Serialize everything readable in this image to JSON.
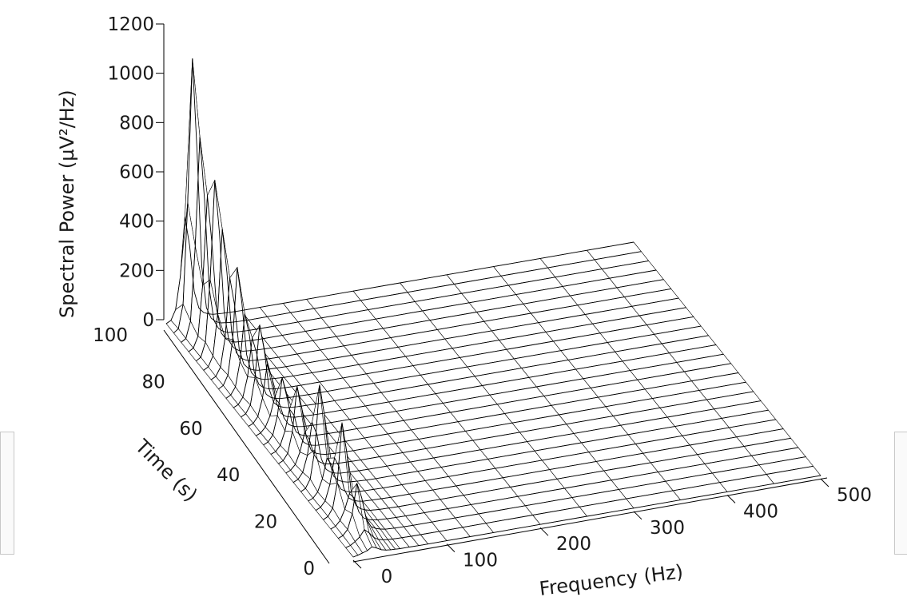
{
  "chart_data": {
    "type": "surface3d",
    "title": "",
    "xlabel": "Frequency (Hz)",
    "ylabel": "Time (s)",
    "zlabel": "Spectral Power (µV²/Hz)",
    "x_ticks": [
      "0",
      "100",
      "200",
      "300",
      "400",
      "500"
    ],
    "y_ticks": [
      "0",
      "20",
      "40",
      "60",
      "80",
      "100"
    ],
    "z_ticks": [
      "0",
      "200",
      "400",
      "600",
      "800",
      "1000",
      "1200"
    ],
    "xlim": [
      0,
      500
    ],
    "ylim": [
      0,
      100
    ],
    "zlim": [
      0,
      1200
    ],
    "grid": false,
    "legend": "none",
    "surface": {
      "frequency_hz": [
        0,
        5,
        10,
        15,
        20,
        25,
        30,
        35,
        40,
        45,
        50,
        60,
        70,
        80,
        100,
        125,
        150,
        200,
        250,
        300,
        350,
        400,
        450,
        500
      ],
      "time_s": [
        0,
        4,
        8,
        12,
        16,
        20,
        24,
        28,
        32,
        36,
        40,
        44,
        48,
        52,
        56,
        60,
        64,
        68,
        72,
        76,
        80,
        84,
        88,
        92,
        96,
        100
      ],
      "power": [
        [
          0,
          4,
          10,
          16,
          28,
          20,
          10,
          5,
          3,
          2,
          1,
          1,
          0,
          0,
          0,
          0,
          0,
          0,
          0,
          0,
          0,
          0,
          0,
          0
        ],
        [
          0,
          6,
          18,
          34,
          60,
          44,
          22,
          10,
          6,
          3,
          2,
          1,
          0,
          0,
          0,
          0,
          0,
          0,
          0,
          0,
          0,
          0,
          0,
          0
        ],
        [
          0,
          8,
          30,
          90,
          210,
          150,
          60,
          25,
          14,
          8,
          4,
          2,
          1,
          0,
          0,
          0,
          0,
          0,
          0,
          0,
          0,
          0,
          0,
          0
        ],
        [
          0,
          8,
          28,
          70,
          130,
          110,
          50,
          22,
          12,
          7,
          4,
          2,
          1,
          0,
          0,
          0,
          0,
          0,
          0,
          0,
          0,
          0,
          0,
          0
        ],
        [
          0,
          10,
          40,
          140,
          380,
          260,
          90,
          35,
          18,
          10,
          5,
          2,
          1,
          0,
          0,
          0,
          0,
          0,
          0,
          0,
          0,
          0,
          0,
          0
        ],
        [
          0,
          9,
          32,
          95,
          200,
          160,
          70,
          28,
          14,
          8,
          4,
          2,
          1,
          0,
          0,
          0,
          0,
          0,
          0,
          0,
          0,
          0,
          0,
          0
        ],
        [
          0,
          8,
          30,
          80,
          160,
          130,
          60,
          25,
          13,
          7,
          4,
          2,
          1,
          0,
          0,
          0,
          0,
          0,
          0,
          0,
          0,
          0,
          0,
          0
        ],
        [
          0,
          10,
          45,
          160,
          420,
          300,
          110,
          40,
          20,
          11,
          6,
          3,
          1,
          0,
          0,
          0,
          0,
          0,
          0,
          0,
          0,
          0,
          0,
          0
        ],
        [
          0,
          9,
          34,
          100,
          230,
          180,
          75,
          30,
          15,
          8,
          4,
          2,
          1,
          0,
          0,
          0,
          0,
          0,
          0,
          0,
          0,
          0,
          0,
          0
        ],
        [
          0,
          8,
          28,
          75,
          150,
          120,
          55,
          24,
          12,
          7,
          4,
          2,
          1,
          0,
          0,
          0,
          0,
          0,
          0,
          0,
          0,
          0,
          0,
          0
        ],
        [
          0,
          9,
          36,
          120,
          300,
          210,
          85,
          32,
          16,
          9,
          5,
          2,
          1,
          0,
          0,
          0,
          0,
          0,
          0,
          0,
          0,
          0,
          0,
          0
        ],
        [
          0,
          8,
          30,
          85,
          170,
          140,
          62,
          26,
          13,
          7,
          4,
          2,
          1,
          0,
          0,
          0,
          0,
          0,
          0,
          0,
          0,
          0,
          0,
          0
        ],
        [
          0,
          9,
          34,
          110,
          260,
          190,
          78,
          30,
          15,
          8,
          4,
          2,
          1,
          0,
          0,
          0,
          0,
          0,
          0,
          0,
          0,
          0,
          0,
          0
        ],
        [
          0,
          8,
          28,
          70,
          140,
          115,
          52,
          22,
          12,
          7,
          4,
          2,
          1,
          0,
          0,
          0,
          0,
          0,
          0,
          0,
          0,
          0,
          0,
          0
        ],
        [
          0,
          9,
          34,
          105,
          240,
          180,
          74,
          29,
          14,
          8,
          4,
          2,
          1,
          0,
          0,
          0,
          0,
          0,
          0,
          0,
          0,
          0,
          0,
          0
        ],
        [
          0,
          10,
          42,
          150,
          360,
          250,
          95,
          36,
          18,
          10,
          5,
          2,
          1,
          0,
          0,
          0,
          0,
          0,
          0,
          0,
          0,
          0,
          0,
          0
        ],
        [
          0,
          9,
          36,
          115,
          270,
          200,
          80,
          31,
          15,
          8,
          4,
          2,
          1,
          0,
          0,
          0,
          0,
          0,
          0,
          0,
          0,
          0,
          0,
          0
        ],
        [
          0,
          10,
          40,
          140,
          330,
          240,
          90,
          34,
          17,
          9,
          5,
          2,
          1,
          0,
          0,
          0,
          0,
          0,
          0,
          0,
          0,
          0,
          0,
          0
        ],
        [
          0,
          11,
          50,
          190,
          480,
          330,
          120,
          44,
          21,
          11,
          6,
          3,
          1,
          0,
          0,
          0,
          0,
          0,
          0,
          0,
          0,
          0,
          0,
          0
        ],
        [
          0,
          10,
          44,
          160,
          400,
          290,
          105,
          40,
          19,
          10,
          5,
          2,
          1,
          0,
          0,
          0,
          0,
          0,
          0,
          0,
          0,
          0,
          0,
          0
        ],
        [
          0,
          11,
          52,
          220,
          560,
          380,
          135,
          48,
          23,
          12,
          6,
          3,
          1,
          0,
          0,
          0,
          0,
          0,
          0,
          0,
          0,
          0,
          0,
          0
        ],
        [
          0,
          12,
          70,
          320,
          720,
          500,
          180,
          60,
          28,
          14,
          7,
          3,
          1,
          0,
          0,
          0,
          0,
          0,
          0,
          0,
          0,
          0,
          0,
          0
        ],
        [
          0,
          11,
          56,
          260,
          620,
          420,
          150,
          52,
          25,
          13,
          6,
          3,
          1,
          0,
          0,
          0,
          0,
          0,
          0,
          0,
          0,
          0,
          0,
          0
        ],
        [
          0,
          12,
          80,
          380,
          820,
          560,
          200,
          66,
          30,
          15,
          7,
          3,
          1,
          0,
          0,
          0,
          0,
          0,
          0,
          0,
          0,
          0,
          0,
          0
        ],
        [
          0,
          14,
          110,
          520,
          1100,
          720,
          250,
          80,
          34,
          17,
          8,
          3,
          1,
          0,
          0,
          0,
          0,
          0,
          0,
          0,
          0,
          0,
          0,
          0
        ],
        [
          0,
          10,
          50,
          180,
          420,
          300,
          110,
          40,
          19,
          10,
          5,
          2,
          1,
          0,
          0,
          0,
          0,
          0,
          0,
          0,
          0,
          0,
          0,
          0
        ]
      ]
    }
  }
}
